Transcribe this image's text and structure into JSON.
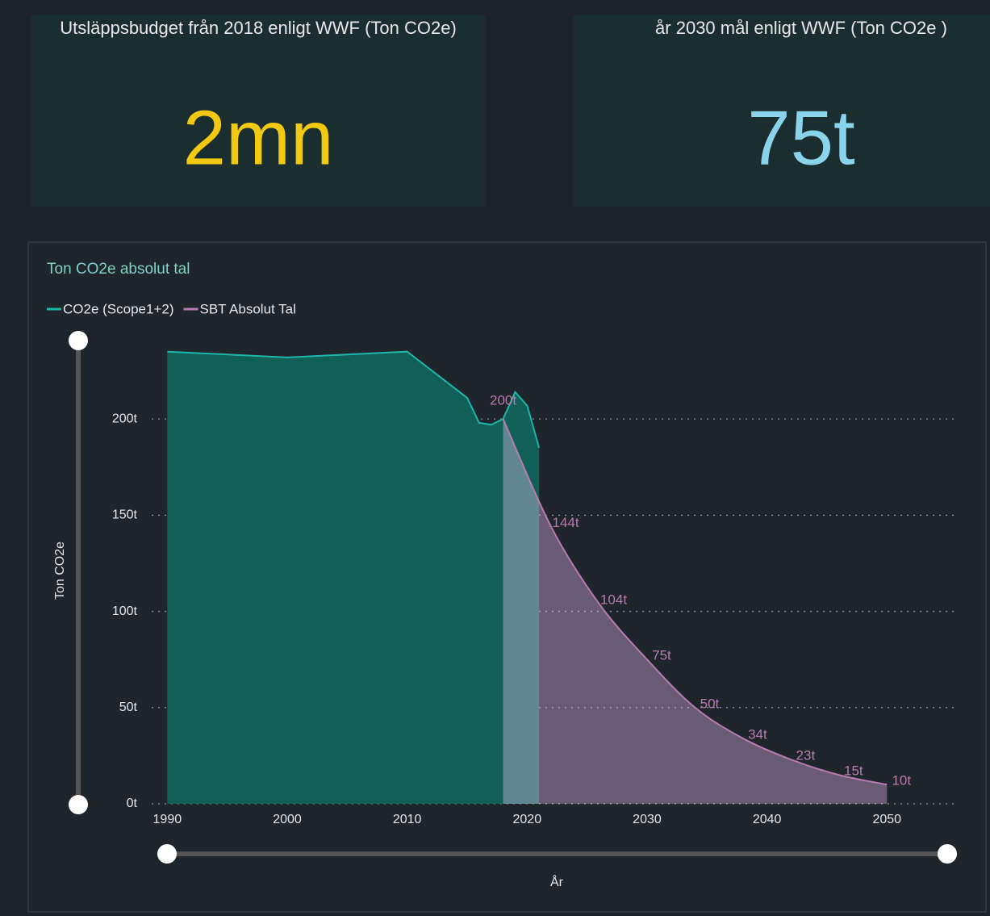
{
  "cards": [
    {
      "title": "Utsläppsbudget från 2018 enligt WWF (Ton CO2e)",
      "value": "2mn"
    },
    {
      "title": "år 2030 mål enligt WWF (Ton CO2e )",
      "value": "75t"
    }
  ],
  "chart_data": {
    "type": "area",
    "title": "Ton CO2e absolut tal",
    "y_label": "Ton CO2e",
    "x_label": "År",
    "xlim": [
      1988.7,
      2055.9
    ],
    "xticks": [
      1990,
      2000,
      2010,
      2020,
      2030,
      2040,
      2050
    ],
    "ylim": [
      0,
      242
    ],
    "yticks": [
      {
        "value": 0,
        "label": "0t"
      },
      {
        "value": 50,
        "label": "50t"
      },
      {
        "value": 100,
        "label": "100t"
      },
      {
        "value": 150,
        "label": "150t"
      },
      {
        "value": 200,
        "label": "200t"
      }
    ],
    "grid": true,
    "series": [
      {
        "name": "CO2e (Scope1+2)",
        "color": "#1fb5a8",
        "fill": "#116058",
        "x": [
          1990,
          2000,
          2010,
          2015,
          2016,
          2017,
          2018,
          2019,
          2020,
          2021
        ],
        "values": [
          235,
          232,
          235,
          211,
          198,
          197,
          200,
          214,
          207,
          185
        ]
      },
      {
        "name": "SBT Absolut Tal",
        "color": "#b87bb0",
        "fill": "#563f58",
        "x": [
          2018,
          2022,
          2026,
          2030,
          2034,
          2038,
          2042,
          2046,
          2050
        ],
        "values": [
          200,
          144,
          104,
          75,
          50,
          34,
          23,
          15,
          10
        ],
        "value_labels": [
          "200t",
          "144t",
          "104t",
          "75t",
          "50t",
          "34t",
          "23t",
          "15t",
          "10t"
        ]
      }
    ]
  }
}
